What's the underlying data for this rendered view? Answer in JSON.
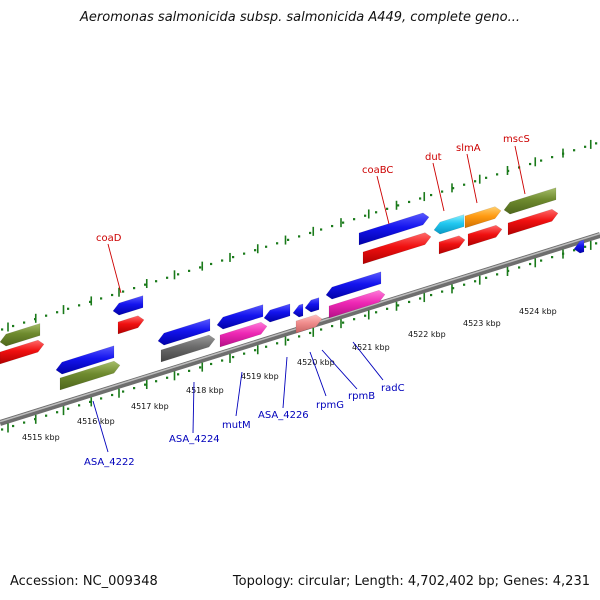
{
  "title": "Aeromonas salmonicida subsp. salmonicida A449, complete geno...",
  "footer": {
    "accession": "Accession: NC_009348",
    "summary": "Topology: circular; Length: 4,702,402 bp; Genes: 4,231"
  },
  "colors": {
    "backbone": "#8a8a8a",
    "tick": "#1a7a1a",
    "label_top": "#cc0000",
    "label_bottom": "#0000bb"
  },
  "map": {
    "scale_labels": [
      "4515 kbp",
      "4516 kbp",
      "4517 kbp",
      "4518 kbp",
      "4519 kbp",
      "4520 kbp",
      "4521 kbp",
      "4522 kbp",
      "4523 kbp",
      "4524 kbp"
    ],
    "top_labels": [
      "coaD",
      "coaBC",
      "dut",
      "slmA",
      "mscS"
    ],
    "bottom_labels": [
      "ASA_4222",
      "ASA_4224",
      "mutM",
      "ASA_4226",
      "rpmG",
      "rpmB",
      "radC"
    ]
  }
}
